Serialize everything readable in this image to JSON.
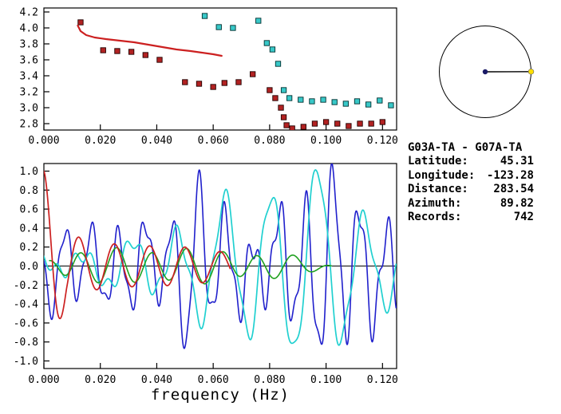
{
  "info_panel": {
    "station_pair": "G03A-TA - G07A-TA",
    "fields": [
      {
        "label": "Latitude:",
        "value": "45.31"
      },
      {
        "label": "Longitude:",
        "value": "-123.28"
      },
      {
        "label": "Distance:",
        "value": "283.54"
      },
      {
        "label": "Azimuth:",
        "value": "89.82"
      },
      {
        "label": "Records:",
        "value": "742"
      }
    ]
  },
  "chart_data": [
    {
      "id": "dispersion",
      "type": "scatter",
      "xlabel": "",
      "xlim": [
        0,
        0.125
      ],
      "ylim": [
        2.72,
        4.25
      ],
      "xticks": {
        "values": [
          0,
          0.02,
          0.04,
          0.06,
          0.08,
          0.1,
          0.12
        ],
        "labels": [
          "0.000",
          "0.020",
          "0.040",
          "0.060",
          "0.080",
          "0.100",
          "0.120"
        ]
      },
      "yticks": {
        "values": [
          4.2,
          4.0,
          3.8,
          3.6,
          3.4,
          3.2,
          3.0,
          2.8
        ],
        "labels": [
          "4.2",
          "4.0",
          "3.8",
          "3.6",
          "3.4",
          "3.2",
          "3.0",
          "2.8"
        ]
      },
      "series": [
        {
          "name": "red-squares",
          "type": "scatter",
          "color": "#b22222",
          "edge": "#200000",
          "points": [
            [
              0.013,
              4.07
            ],
            [
              0.021,
              3.72
            ],
            [
              0.026,
              3.71
            ],
            [
              0.031,
              3.7
            ],
            [
              0.036,
              3.66
            ],
            [
              0.041,
              3.6
            ],
            [
              0.05,
              3.32
            ],
            [
              0.055,
              3.3
            ],
            [
              0.06,
              3.26
            ],
            [
              0.064,
              3.31
            ],
            [
              0.069,
              3.32
            ],
            [
              0.074,
              3.42
            ],
            [
              0.08,
              3.22
            ],
            [
              0.082,
              3.12
            ],
            [
              0.084,
              3.0
            ],
            [
              0.085,
              2.88
            ],
            [
              0.086,
              2.78
            ],
            [
              0.088,
              2.74
            ],
            [
              0.092,
              2.76
            ],
            [
              0.096,
              2.8
            ],
            [
              0.1,
              2.82
            ],
            [
              0.104,
              2.8
            ],
            [
              0.108,
              2.77
            ],
            [
              0.112,
              2.8
            ],
            [
              0.116,
              2.8
            ],
            [
              0.12,
              2.82
            ]
          ]
        },
        {
          "name": "cyan-squares",
          "type": "scatter",
          "color": "#38c8c8",
          "edge": "#003030",
          "points": [
            [
              0.057,
              4.15
            ],
            [
              0.062,
              4.01
            ],
            [
              0.067,
              4.0
            ],
            [
              0.076,
              4.09
            ],
            [
              0.079,
              3.81
            ],
            [
              0.081,
              3.73
            ],
            [
              0.083,
              3.55
            ],
            [
              0.085,
              3.22
            ],
            [
              0.087,
              3.12
            ],
            [
              0.091,
              3.1
            ],
            [
              0.095,
              3.08
            ],
            [
              0.099,
              3.1
            ],
            [
              0.103,
              3.07
            ],
            [
              0.107,
              3.05
            ],
            [
              0.111,
              3.08
            ],
            [
              0.115,
              3.04
            ],
            [
              0.119,
              3.09
            ],
            [
              0.123,
              3.03
            ]
          ]
        },
        {
          "name": "red-line",
          "type": "line",
          "color": "#cc2020",
          "width": 2.2,
          "points": [
            [
              0.012,
              4.03
            ],
            [
              0.013,
              3.96
            ],
            [
              0.015,
              3.91
            ],
            [
              0.018,
              3.88
            ],
            [
              0.022,
              3.86
            ],
            [
              0.027,
              3.84
            ],
            [
              0.032,
              3.82
            ],
            [
              0.037,
              3.79
            ],
            [
              0.042,
              3.76
            ],
            [
              0.047,
              3.73
            ],
            [
              0.052,
              3.71
            ],
            [
              0.056,
              3.69
            ],
            [
              0.06,
              3.67
            ],
            [
              0.063,
              3.65
            ]
          ]
        }
      ]
    },
    {
      "id": "waveforms",
      "type": "line",
      "xlabel": "frequency (Hz)",
      "xlim": [
        0,
        0.125
      ],
      "ylim": [
        -1.08,
        1.08
      ],
      "zero_line": true,
      "xticks": {
        "values": [
          0,
          0.02,
          0.04,
          0.06,
          0.08,
          0.1,
          0.12
        ],
        "labels": [
          "0.000",
          "0.020",
          "0.040",
          "0.060",
          "0.080",
          "0.100",
          "0.120"
        ]
      },
      "yticks": {
        "values": [
          1.0,
          0.8,
          0.6,
          0.4,
          0.2,
          0.0,
          -0.2,
          -0.4,
          -0.6,
          -0.8,
          -1.0
        ],
        "labels": [
          "1.0",
          "0.8",
          "0.6",
          "0.4",
          "0.2",
          "0.0",
          "-0.2",
          "-0.4",
          "-0.6",
          "-0.8",
          "-1.0"
        ]
      },
      "series": [
        {
          "name": "blue-trace",
          "type": "synth",
          "color": "#2020cc",
          "width": 1.6,
          "range": [
            0,
            0.1249
          ],
          "components": [
            {
              "period": 0.0095,
              "phase": 2.95,
              "env": [
                [
                  0,
                  0.36
                ],
                [
                  0.008,
                  0.42
                ],
                [
                  0.018,
                  0.3
                ],
                [
                  0.028,
                  0.45
                ],
                [
                  0.04,
                  0.33
                ],
                [
                  0.048,
                  0.65
                ],
                [
                  0.054,
                  0.92
                ],
                [
                  0.06,
                  0.62
                ],
                [
                  0.068,
                  0.38
                ],
                [
                  0.078,
                  0.32
                ],
                [
                  0.088,
                  0.6
                ],
                [
                  0.096,
                  0.8
                ],
                [
                  0.104,
                  0.95
                ],
                [
                  0.112,
                  0.62
                ],
                [
                  0.12,
                  0.42
                ],
                [
                  0.1249,
                  0.55
                ]
              ]
            },
            {
              "period": 0.0042,
              "phase": 0.5,
              "env": [
                [
                  0,
                  0.1
                ],
                [
                  0.05,
                  0.13
                ],
                [
                  0.1,
                  0.2
                ],
                [
                  0.1249,
                  0.16
                ]
              ]
            },
            {
              "period": 0.023,
              "phase": 4.0,
              "env": [
                [
                  0,
                  0.08
                ],
                [
                  0.06,
                  0.12
                ],
                [
                  0.1249,
                  0.14
                ]
              ]
            }
          ]
        },
        {
          "name": "cyan-trace",
          "type": "synth",
          "color": "#20d0d0",
          "width": 1.7,
          "range": [
            0,
            0.1249
          ],
          "components": [
            {
              "period": 0.0165,
              "phase": 2.34,
              "env": [
                [
                  0,
                  0.1
                ],
                [
                  0.02,
                  0.13
                ],
                [
                  0.035,
                  0.28
                ],
                [
                  0.05,
                  0.42
                ],
                [
                  0.065,
                  0.65
                ],
                [
                  0.08,
                  0.85
                ],
                [
                  0.097,
                  0.95
                ],
                [
                  0.108,
                  0.7
                ],
                [
                  0.118,
                  0.5
                ],
                [
                  0.1249,
                  0.42
                ]
              ]
            },
            {
              "period": 0.006,
              "phase": 2.8,
              "env": [
                [
                  0,
                  0.07
                ],
                [
                  0.04,
                  0.09
                ],
                [
                  0.08,
                  0.11
                ],
                [
                  0.1249,
                  0.09
                ]
              ]
            },
            {
              "period": 0.03,
              "phase": 0.2,
              "env": [
                [
                  0,
                  0.04
                ],
                [
                  0.06,
                  0.09
                ],
                [
                  0.1249,
                  0.1
                ]
              ]
            }
          ]
        },
        {
          "name": "green-trace",
          "type": "synth",
          "color": "#20a020",
          "width": 1.6,
          "range": [
            0.002,
            0.102
          ],
          "components": [
            {
              "period": 0.0125,
              "phase": 1.2,
              "env": [
                [
                  0.002,
                  0.05
                ],
                [
                  0.01,
                  0.16
                ],
                [
                  0.05,
                  0.17
                ],
                [
                  0.08,
                  0.12
                ],
                [
                  0.102,
                  0.03
                ]
              ]
            },
            {
              "period": 0.021,
              "phase": 0.0,
              "env": [
                [
                  0.002,
                  0.03
                ],
                [
                  0.102,
                  0.03
                ]
              ]
            }
          ]
        },
        {
          "name": "red-trace",
          "type": "synth",
          "color": "#cc2020",
          "width": 1.7,
          "range": [
            0,
            0.066
          ],
          "components": [
            {
              "period": 0.0125,
              "phase": 1.5708,
              "env": [
                [
                  0,
                  1.0
                ],
                [
                  0.004,
                  0.72
                ],
                [
                  0.008,
                  0.38
                ],
                [
                  0.015,
                  0.26
                ],
                [
                  0.03,
                  0.22
                ],
                [
                  0.05,
                  0.2
                ],
                [
                  0.066,
                  0.14
                ]
              ]
            }
          ]
        }
      ]
    },
    {
      "id": "azimuth",
      "type": "polar-azimuth",
      "azimuth_deg": 89.82,
      "circle_color": "#000000",
      "center_dot_color": "#1a1a66",
      "station_dot_color": "#ffdf00"
    }
  ]
}
